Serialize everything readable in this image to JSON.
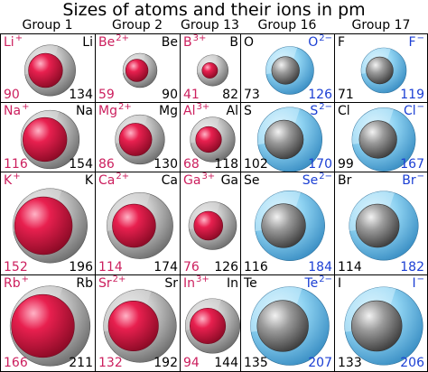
{
  "title": "Sizes of atoms and their ions in pm",
  "group_headers": [
    "Group 1",
    "Group 2",
    "Group 13",
    "Group 16",
    "Group 17"
  ],
  "colors": {
    "cation": "#cc1f5e",
    "anion": "#1b3fd4",
    "atom_sphere": "gray",
    "cation_sphere": "crimson",
    "anion_sphere": "sky-blue"
  },
  "rows": [
    [
      {
        "atom": "Li",
        "ion": "Li",
        "charge": "+",
        "atom_radius": "134",
        "ion_radius": "90",
        "kind": "cation"
      },
      {
        "atom": "Be",
        "ion": "Be",
        "charge": "2+",
        "atom_radius": "90",
        "ion_radius": "59",
        "kind": "cation"
      },
      {
        "atom": "B",
        "ion": "B",
        "charge": "3+",
        "atom_radius": "82",
        "ion_radius": "41",
        "kind": "cation"
      },
      {
        "atom": "O",
        "ion": "O",
        "charge": "2−",
        "atom_radius": "73",
        "ion_radius": "126",
        "kind": "anion"
      },
      {
        "atom": "F",
        "ion": "F",
        "charge": "−",
        "atom_radius": "71",
        "ion_radius": "119",
        "kind": "anion"
      }
    ],
    [
      {
        "atom": "Na",
        "ion": "Na",
        "charge": "+",
        "atom_radius": "154",
        "ion_radius": "116",
        "kind": "cation"
      },
      {
        "atom": "Mg",
        "ion": "Mg",
        "charge": "2+",
        "atom_radius": "130",
        "ion_radius": "86",
        "kind": "cation"
      },
      {
        "atom": "Al",
        "ion": "Al",
        "charge": "3+",
        "atom_radius": "118",
        "ion_radius": "68",
        "kind": "cation"
      },
      {
        "atom": "S",
        "ion": "S",
        "charge": "2−",
        "atom_radius": "102",
        "ion_radius": "170",
        "kind": "anion"
      },
      {
        "atom": "Cl",
        "ion": "Cl",
        "charge": "−",
        "atom_radius": "99",
        "ion_radius": "167",
        "kind": "anion"
      }
    ],
    [
      {
        "atom": "K",
        "ion": "K",
        "charge": "+",
        "atom_radius": "196",
        "ion_radius": "152",
        "kind": "cation"
      },
      {
        "atom": "Ca",
        "ion": "Ca",
        "charge": "2+",
        "atom_radius": "174",
        "ion_radius": "114",
        "kind": "cation"
      },
      {
        "atom": "Ga",
        "ion": "Ga",
        "charge": "3+",
        "atom_radius": "126",
        "ion_radius": "76",
        "kind": "cation"
      },
      {
        "atom": "Se",
        "ion": "Se",
        "charge": "2−",
        "atom_radius": "116",
        "ion_radius": "184",
        "kind": "anion"
      },
      {
        "atom": "Br",
        "ion": "Br",
        "charge": "−",
        "atom_radius": "114",
        "ion_radius": "182",
        "kind": "anion"
      }
    ],
    [
      {
        "atom": "Rb",
        "ion": "Rb",
        "charge": "+",
        "atom_radius": "211",
        "ion_radius": "166",
        "kind": "cation"
      },
      {
        "atom": "Sr",
        "ion": "Sr",
        "charge": "2+",
        "atom_radius": "192",
        "ion_radius": "132",
        "kind": "cation"
      },
      {
        "atom": "In",
        "ion": "In",
        "charge": "3+",
        "atom_radius": "144",
        "ion_radius": "94",
        "kind": "cation"
      },
      {
        "atom": "Te",
        "ion": "Te",
        "charge": "2−",
        "atom_radius": "135",
        "ion_radius": "207",
        "kind": "anion"
      },
      {
        "atom": "I",
        "ion": "I",
        "charge": "−",
        "atom_radius": "133",
        "ion_radius": "206",
        "kind": "anion"
      }
    ]
  ]
}
